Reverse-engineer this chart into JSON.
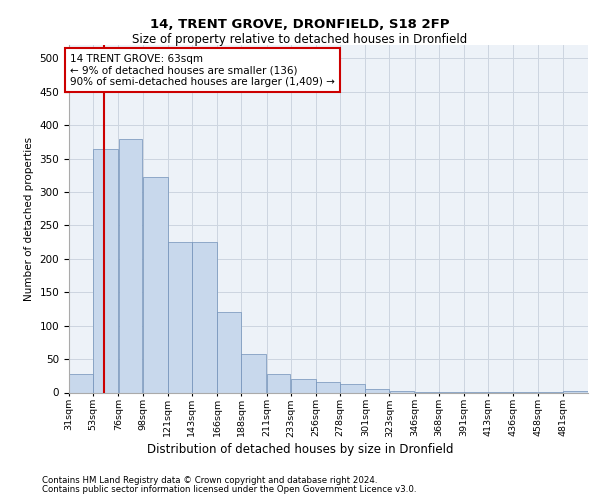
{
  "title1": "14, TRENT GROVE, DRONFIELD, S18 2FP",
  "title2": "Size of property relative to detached houses in Dronfield",
  "xlabel": "Distribution of detached houses by size in Dronfield",
  "ylabel": "Number of detached properties",
  "footnote1": "Contains HM Land Registry data © Crown copyright and database right 2024.",
  "footnote2": "Contains public sector information licensed under the Open Government Licence v3.0.",
  "annotation_line1": "14 TRENT GROVE: 63sqm",
  "annotation_line2": "← 9% of detached houses are smaller (136)",
  "annotation_line3": "90% of semi-detached houses are larger (1,409) →",
  "bar_color": "#c8d8ec",
  "bar_edge_color": "#7090b8",
  "grid_color": "#cdd5e0",
  "background_color": "#edf2f8",
  "red_line_color": "#cc0000",
  "annotation_box_edge": "#cc0000",
  "bin_labels": [
    "31sqm",
    "53sqm",
    "76sqm",
    "98sqm",
    "121sqm",
    "143sqm",
    "166sqm",
    "188sqm",
    "211sqm",
    "233sqm",
    "256sqm",
    "278sqm",
    "301sqm",
    "323sqm",
    "346sqm",
    "368sqm",
    "391sqm",
    "413sqm",
    "436sqm",
    "458sqm",
    "481sqm"
  ],
  "bar_heights": [
    28,
    365,
    380,
    322,
    225,
    225,
    120,
    58,
    28,
    20,
    16,
    12,
    5,
    2,
    1,
    1,
    1,
    1,
    1,
    1,
    2
  ],
  "bin_edges": [
    31,
    53,
    76,
    98,
    121,
    143,
    166,
    188,
    211,
    233,
    256,
    278,
    301,
    323,
    346,
    368,
    391,
    413,
    436,
    458,
    481,
    504
  ],
  "property_size": 63,
  "ylim": [
    0,
    520
  ],
  "yticks": [
    0,
    50,
    100,
    150,
    200,
    250,
    300,
    350,
    400,
    450,
    500
  ]
}
